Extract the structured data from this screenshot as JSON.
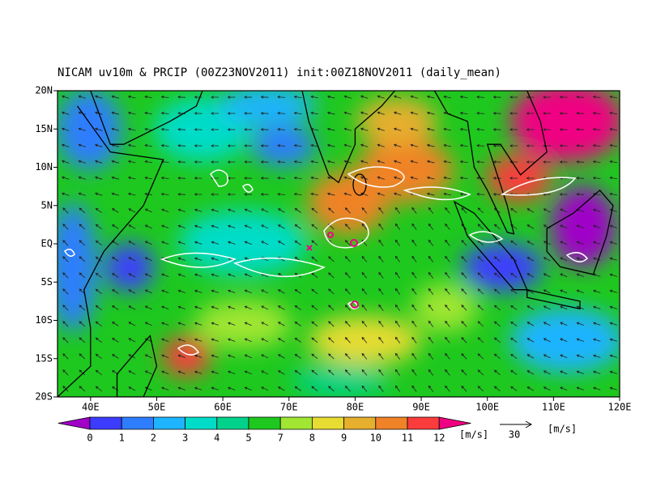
{
  "title": "NICAM uv10m & PRCIP (00Z23NOV2011) init:00Z18NOV2011 (daily_mean)",
  "map": {
    "xlim": [
      35,
      120
    ],
    "ylim": [
      -20,
      20
    ],
    "xticks": [
      {
        "value": 40,
        "label": "40E"
      },
      {
        "value": 50,
        "label": "50E"
      },
      {
        "value": 60,
        "label": "60E"
      },
      {
        "value": 70,
        "label": "70E"
      },
      {
        "value": 80,
        "label": "80E"
      },
      {
        "value": 90,
        "label": "90E"
      },
      {
        "value": 100,
        "label": "100E"
      },
      {
        "value": 110,
        "label": "110E"
      },
      {
        "value": 120,
        "label": "120E"
      }
    ],
    "yticks": [
      {
        "value": 20,
        "label": "20N"
      },
      {
        "value": 15,
        "label": "15N"
      },
      {
        "value": 10,
        "label": "10N"
      },
      {
        "value": 5,
        "label": "5N"
      },
      {
        "value": 0,
        "label": "EQ"
      },
      {
        "value": -5,
        "label": "5S"
      },
      {
        "value": -10,
        "label": "10S"
      },
      {
        "value": -15,
        "label": "15S"
      },
      {
        "value": -20,
        "label": "20S"
      }
    ]
  },
  "colorbar": {
    "levels": [
      0,
      1,
      2,
      3,
      4,
      5,
      7,
      8,
      9,
      10,
      11,
      12
    ],
    "colors": [
      "#a000c8",
      "#3c3cff",
      "#2e7dff",
      "#1eb4ff",
      "#00dcc8",
      "#00d28c",
      "#1ec81e",
      "#a0e632",
      "#e6dc32",
      "#e6af2d",
      "#f08228",
      "#fa3c3c",
      "#f00082"
    ],
    "unit": "[m/s]"
  },
  "reference_vector": {
    "value": 30,
    "unit": "[m/s]"
  }
}
